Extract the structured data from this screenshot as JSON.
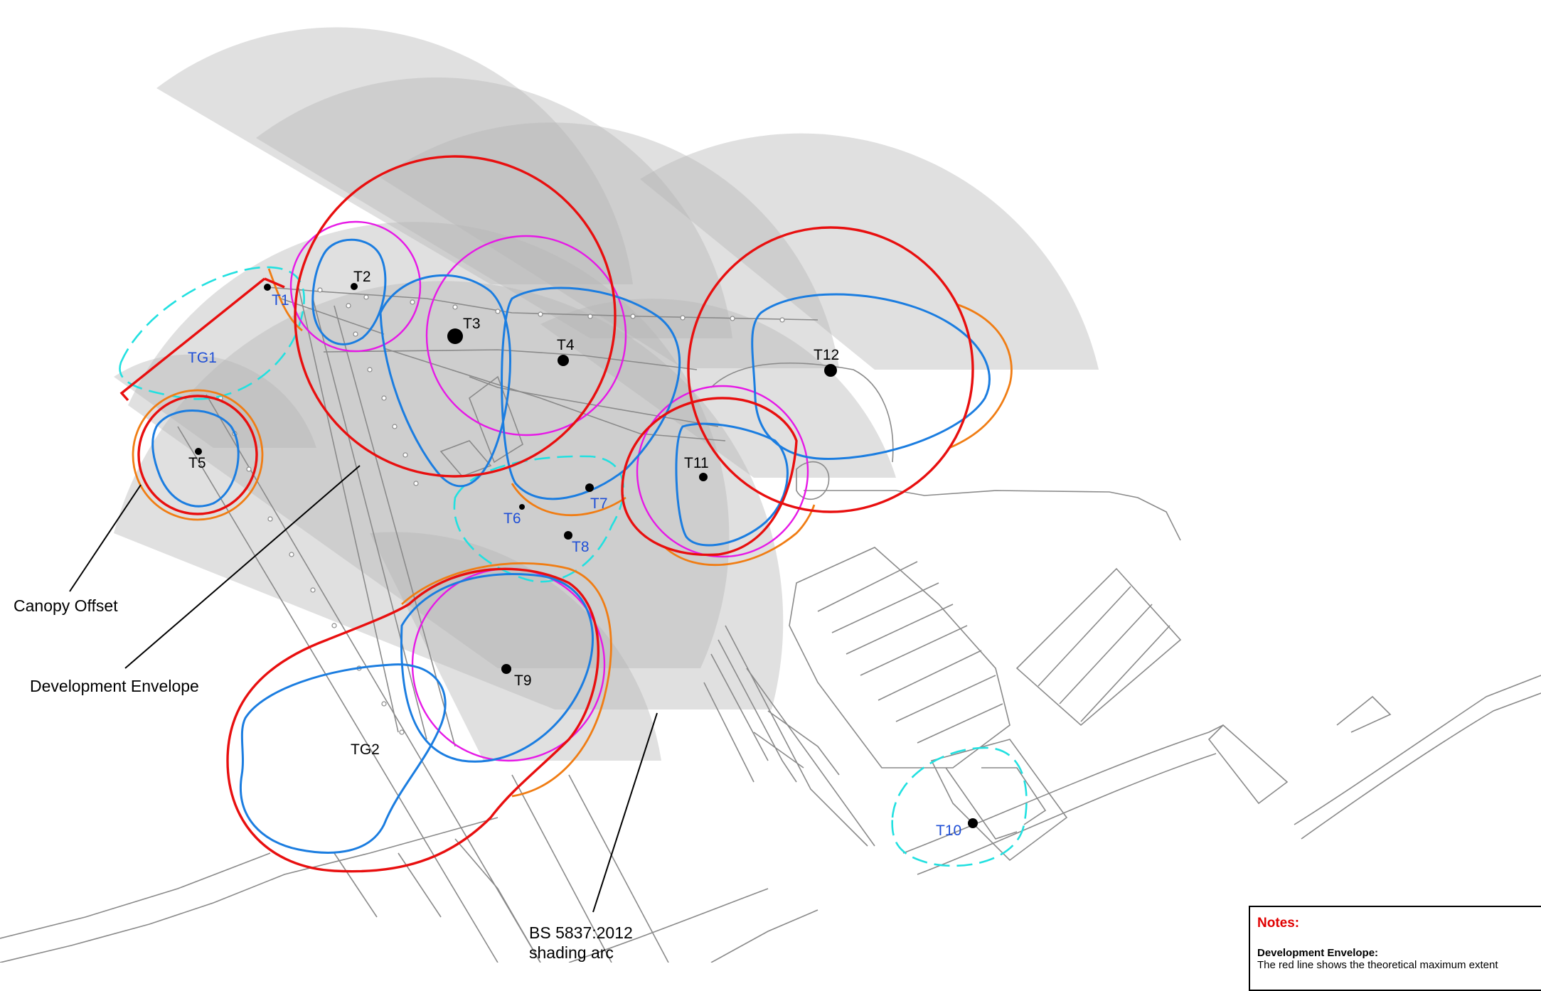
{
  "trees": {
    "T1": "T1",
    "T2": "T2",
    "T3": "T3",
    "T4": "T4",
    "T5": "T5",
    "T6": "T6",
    "T7": "T7",
    "T8": "T8",
    "T9": "T9",
    "T10": "T10",
    "T11": "T11",
    "T12": "T12"
  },
  "groups": {
    "TG1": "TG1",
    "TG2": "TG2"
  },
  "callouts": {
    "canopy_offset": "Canopy Offset",
    "development_envelope": "Development Envelope",
    "shading_arc_line1": "BS 5837:2012",
    "shading_arc_line2": "shading arc"
  },
  "notes": {
    "title": "Notes:",
    "subtitle": "Development Envelope:",
    "body": "The red line shows the theoretical maximum extent"
  },
  "colors": {
    "development_envelope": "#e80f0f",
    "canopy_offset": "#f07d14",
    "root_protection": "#1b7de0",
    "crown_spread": "#e619e6",
    "tree_group": "#22e0e0",
    "shading_arc": "#c8c8c8",
    "base_map": "#888888",
    "blue_label": "#1f4fd6"
  }
}
